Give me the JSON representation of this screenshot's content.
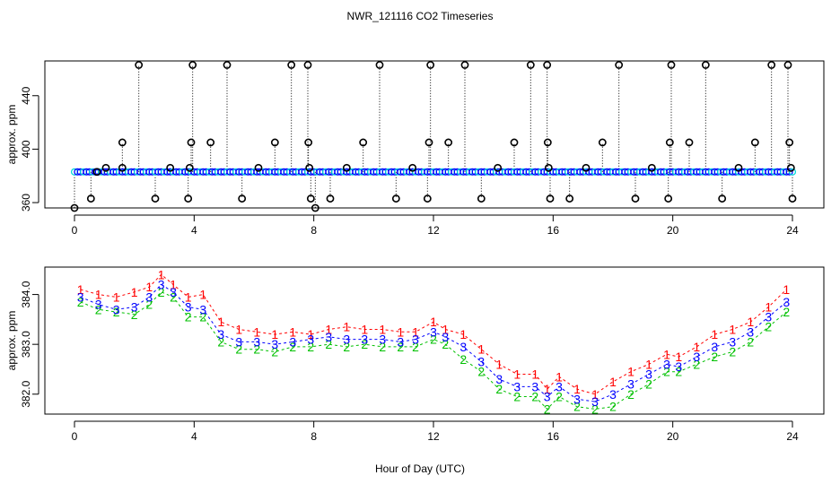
{
  "title": "NWR_121116  CO2 Timeseries",
  "xlabel": "Hour of Day (UTC)",
  "colors": {
    "axis": "#000000",
    "series1": "#ff0000",
    "series2": "#00c000",
    "series3": "#0000ff",
    "cyan": "#00d8d8"
  },
  "chart_data": [
    {
      "type": "scatter",
      "name": "raw-timeseries",
      "ylabel": "approx. ppm",
      "xlim": [
        0,
        24
      ],
      "ylim": [
        356,
        466
      ],
      "xticks": [
        0,
        4,
        8,
        12,
        16,
        20,
        24
      ],
      "yticks": [
        360,
        400,
        440
      ],
      "baseline": 383,
      "spikes": [
        {
          "x": 0.0,
          "y": 356
        },
        {
          "x": 0.55,
          "y": 363
        },
        {
          "x": 0.75,
          "y": 383
        },
        {
          "x": 1.05,
          "y": 386
        },
        {
          "x": 1.6,
          "y": 386
        },
        {
          "x": 1.6,
          "y": 405
        },
        {
          "x": 2.15,
          "y": 463
        },
        {
          "x": 2.7,
          "y": 363
        },
        {
          "x": 3.2,
          "y": 386
        },
        {
          "x": 3.8,
          "y": 363
        },
        {
          "x": 3.85,
          "y": 386
        },
        {
          "x": 3.9,
          "y": 405
        },
        {
          "x": 3.95,
          "y": 463
        },
        {
          "x": 4.55,
          "y": 405
        },
        {
          "x": 5.1,
          "y": 463
        },
        {
          "x": 5.6,
          "y": 363
        },
        {
          "x": 6.15,
          "y": 386
        },
        {
          "x": 6.7,
          "y": 405
        },
        {
          "x": 7.25,
          "y": 463
        },
        {
          "x": 7.8,
          "y": 463
        },
        {
          "x": 7.82,
          "y": 405
        },
        {
          "x": 7.85,
          "y": 386
        },
        {
          "x": 7.9,
          "y": 363
        },
        {
          "x": 8.05,
          "y": 356
        },
        {
          "x": 8.55,
          "y": 363
        },
        {
          "x": 9.1,
          "y": 386
        },
        {
          "x": 9.65,
          "y": 405
        },
        {
          "x": 10.2,
          "y": 463
        },
        {
          "x": 10.75,
          "y": 363
        },
        {
          "x": 11.3,
          "y": 386
        },
        {
          "x": 11.8,
          "y": 363
        },
        {
          "x": 11.85,
          "y": 405
        },
        {
          "x": 11.9,
          "y": 463
        },
        {
          "x": 12.5,
          "y": 405
        },
        {
          "x": 13.05,
          "y": 463
        },
        {
          "x": 13.6,
          "y": 363
        },
        {
          "x": 14.15,
          "y": 386
        },
        {
          "x": 14.7,
          "y": 405
        },
        {
          "x": 15.25,
          "y": 463
        },
        {
          "x": 15.8,
          "y": 463
        },
        {
          "x": 15.82,
          "y": 405
        },
        {
          "x": 15.85,
          "y": 386
        },
        {
          "x": 15.9,
          "y": 363
        },
        {
          "x": 16.55,
          "y": 363
        },
        {
          "x": 17.1,
          "y": 386
        },
        {
          "x": 17.65,
          "y": 405
        },
        {
          "x": 18.2,
          "y": 463
        },
        {
          "x": 18.75,
          "y": 363
        },
        {
          "x": 19.3,
          "y": 386
        },
        {
          "x": 19.85,
          "y": 363
        },
        {
          "x": 19.9,
          "y": 405
        },
        {
          "x": 19.95,
          "y": 463
        },
        {
          "x": 20.55,
          "y": 405
        },
        {
          "x": 21.1,
          "y": 463
        },
        {
          "x": 21.65,
          "y": 363
        },
        {
          "x": 22.2,
          "y": 386
        },
        {
          "x": 22.75,
          "y": 405
        },
        {
          "x": 23.3,
          "y": 463
        },
        {
          "x": 23.85,
          "y": 463
        },
        {
          "x": 23.9,
          "y": 405
        },
        {
          "x": 23.95,
          "y": 386
        },
        {
          "x": 24.0,
          "y": 363
        }
      ]
    },
    {
      "type": "line",
      "name": "hourly-labeled-series",
      "ylabel": "approx. ppm",
      "xlim": [
        0,
        24
      ],
      "ylim": [
        381.6,
        384.55
      ],
      "xticks": [
        0,
        4,
        8,
        12,
        16,
        20,
        24
      ],
      "yticks": [
        382.0,
        383.0,
        384.0
      ],
      "yticklabels": [
        "382.0",
        "383.0",
        "384.0"
      ],
      "x": [
        0.2,
        0.8,
        1.4,
        2.0,
        2.5,
        2.9,
        3.3,
        3.8,
        4.3,
        4.9,
        5.5,
        6.1,
        6.7,
        7.3,
        7.9,
        8.5,
        9.1,
        9.7,
        10.3,
        10.9,
        11.4,
        12.0,
        12.4,
        13.0,
        13.6,
        14.2,
        14.8,
        15.4,
        15.8,
        16.2,
        16.8,
        17.4,
        18.0,
        18.6,
        19.2,
        19.8,
        20.2,
        20.8,
        21.4,
        22.0,
        22.6,
        23.2,
        23.8
      ],
      "series": [
        {
          "name": "1",
          "values": [
            384.1,
            384.0,
            383.95,
            384.05,
            384.15,
            384.4,
            384.2,
            383.95,
            384.0,
            383.45,
            383.3,
            383.25,
            383.2,
            383.25,
            383.2,
            383.3,
            383.35,
            383.3,
            383.3,
            383.25,
            383.25,
            383.45,
            383.3,
            383.2,
            382.9,
            382.6,
            382.4,
            382.4,
            382.1,
            382.35,
            382.1,
            382.0,
            382.25,
            382.45,
            382.6,
            382.8,
            382.75,
            382.95,
            383.2,
            383.3,
            383.45,
            383.75,
            384.1
          ]
        },
        {
          "name": "2",
          "values": [
            383.85,
            383.7,
            383.65,
            383.6,
            383.8,
            384.05,
            383.95,
            383.55,
            383.55,
            383.05,
            382.9,
            382.9,
            382.85,
            382.95,
            382.95,
            383.0,
            382.95,
            383.0,
            382.95,
            382.95,
            382.95,
            383.1,
            383.0,
            382.7,
            382.45,
            382.1,
            381.95,
            381.95,
            381.7,
            381.95,
            381.75,
            381.7,
            381.75,
            382.0,
            382.2,
            382.45,
            382.45,
            382.6,
            382.75,
            382.85,
            383.05,
            383.35,
            383.65
          ]
        },
        {
          "name": "3",
          "values": [
            383.95,
            383.8,
            383.7,
            383.75,
            383.95,
            384.2,
            384.05,
            383.75,
            383.7,
            383.2,
            383.05,
            383.05,
            383.0,
            383.05,
            383.1,
            383.15,
            383.1,
            383.1,
            383.1,
            383.05,
            383.1,
            383.25,
            383.15,
            382.95,
            382.65,
            382.3,
            382.15,
            382.15,
            381.95,
            382.15,
            381.9,
            381.85,
            382.0,
            382.2,
            382.4,
            382.6,
            382.55,
            382.75,
            382.95,
            383.05,
            383.25,
            383.55,
            383.85
          ]
        }
      ]
    }
  ]
}
